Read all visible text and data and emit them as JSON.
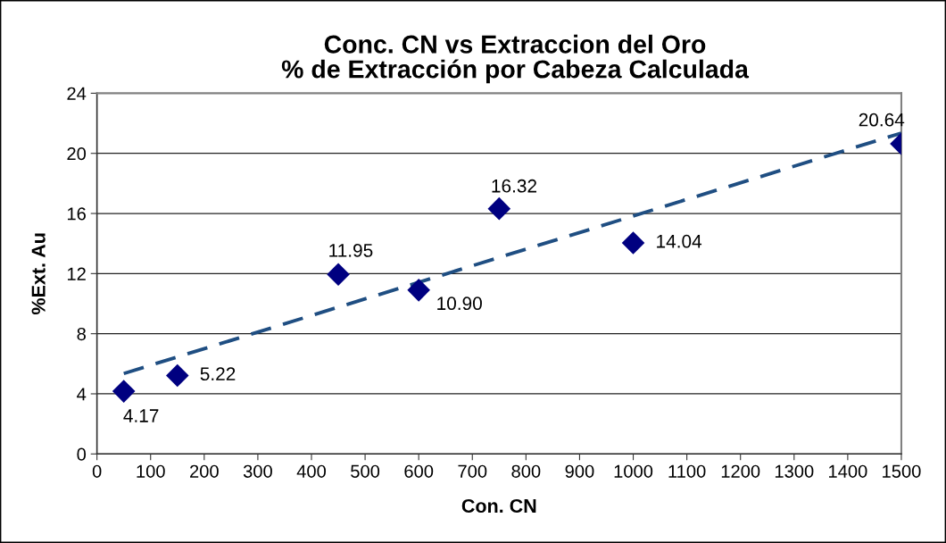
{
  "chart_data": {
    "type": "scatter",
    "title": "Conc. CN vs Extraccion del Oro\n% de Extracción por Cabeza Calculada",
    "xlabel": "Con. CN",
    "ylabel": "%Ext. Au",
    "marker": "diamond",
    "series": [
      {
        "color": "#000080",
        "x": [
          50,
          150,
          450,
          600,
          750,
          1000,
          1500
        ],
        "values": [
          4.17,
          5.22,
          11.95,
          10.9,
          16.32,
          14.04,
          20.64
        ],
        "value_labels": [
          "4.17",
          "5.22",
          "11.95",
          "10.90",
          "16.32",
          "14.04",
          "20.64"
        ]
      },
      {
        "type": "line",
        "color": "#1f4e82",
        "line_style": "dashed",
        "marker": "none",
        "x": [
          50,
          1500
        ],
        "values": [
          5.35,
          21.35
        ]
      }
    ],
    "xlim": [
      0,
      1500
    ],
    "xticks": [
      0,
      100,
      200,
      300,
      400,
      500,
      600,
      700,
      800,
      900,
      1000,
      1100,
      1200,
      1300,
      1400,
      1500
    ],
    "ylim": [
      0,
      24
    ],
    "yticks": [
      0,
      4,
      8,
      12,
      16,
      20,
      24
    ],
    "grid": "y",
    "legend": false
  }
}
